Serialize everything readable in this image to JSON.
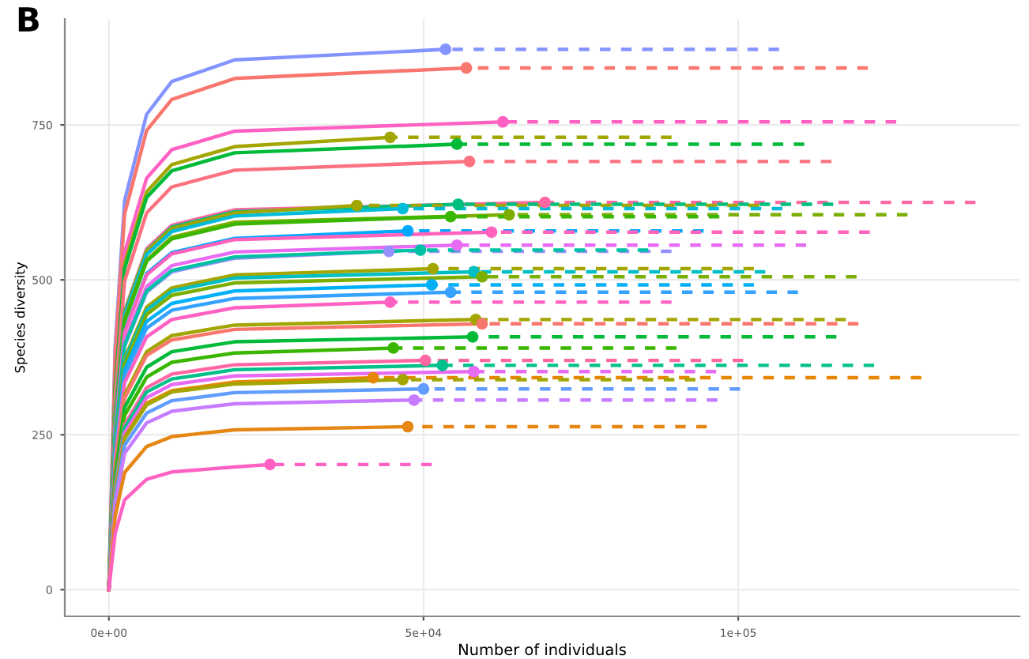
{
  "chart_data": {
    "type": "line",
    "title": "B",
    "xlabel": "Number of individuals",
    "ylabel": "Species diversity",
    "xlim": [
      -7000,
      144700
    ],
    "ylim": [
      -43,
      921
    ],
    "xticks": [
      {
        "value": 0,
        "label": "0e+00"
      },
      {
        "value": 50000,
        "label": "5e+04"
      },
      {
        "value": 100000,
        "label": "1e+05"
      }
    ],
    "yticks": [
      0,
      250,
      500,
      750
    ],
    "grid": true,
    "legend": false,
    "series": [
      {
        "type": "line",
        "line_style": "solid",
        "color": "#8494ff",
        "x": [
          0,
          1000,
          2500,
          6000,
          10000,
          20000,
          53500
        ],
        "values": [
          0,
          392,
          628,
          767,
          820,
          855,
          872
        ]
      },
      {
        "type": "line",
        "line_style": "dashed",
        "color": "#8494ff",
        "x": [
          53500,
          106500
        ],
        "values": [
          872,
          872
        ]
      },
      {
        "type": "line",
        "line_style": "solid",
        "color": "#f8766d",
        "x": [
          0,
          1000,
          2500,
          6000,
          10000,
          20000,
          56800
        ],
        "values": [
          0,
          379,
          606,
          741,
          791,
          825,
          842
        ]
      },
      {
        "type": "line",
        "line_style": "dashed",
        "color": "#f8766d",
        "x": [
          56800,
          120600
        ],
        "values": [
          842,
          842
        ]
      },
      {
        "type": "line",
        "line_style": "solid",
        "color": "#ff61c3",
        "x": [
          0,
          1000,
          2500,
          6000,
          10000,
          20000,
          62600
        ],
        "values": [
          0,
          340,
          544,
          664,
          710,
          740,
          755
        ]
      },
      {
        "type": "line",
        "line_style": "dashed",
        "color": "#ff61c3",
        "x": [
          62600,
          125100
        ],
        "values": [
          755,
          755
        ]
      },
      {
        "type": "line",
        "line_style": "solid",
        "color": "#a3a500",
        "x": [
          0,
          1000,
          2500,
          6000,
          10000,
          20000,
          44700
        ],
        "values": [
          0,
          329,
          526,
          642,
          686,
          715,
          730
        ]
      },
      {
        "type": "line",
        "line_style": "dashed",
        "color": "#a3a500",
        "x": [
          44700,
          89400
        ],
        "values": [
          730,
          730
        ]
      },
      {
        "type": "line",
        "line_style": "solid",
        "color": "#00ba38",
        "x": [
          0,
          1000,
          2500,
          6000,
          10000,
          20000,
          55300
        ],
        "values": [
          0,
          324,
          518,
          633,
          676,
          705,
          719
        ]
      },
      {
        "type": "line",
        "line_style": "dashed",
        "color": "#00ba38",
        "x": [
          55300,
          110500
        ],
        "values": [
          719,
          719
        ]
      },
      {
        "type": "line",
        "line_style": "solid",
        "color": "#fc717f",
        "x": [
          0,
          1000,
          2500,
          6000,
          10000,
          20000,
          57300
        ],
        "values": [
          0,
          311,
          498,
          608,
          650,
          677,
          691
        ]
      },
      {
        "type": "line",
        "line_style": "dashed",
        "color": "#fc717f",
        "x": [
          57300,
          114800
        ],
        "values": [
          691,
          691
        ]
      },
      {
        "type": "line",
        "line_style": "solid",
        "color": "#ff67a4",
        "x": [
          0,
          1000,
          2500,
          6000,
          10000,
          20000,
          69300
        ],
        "values": [
          0,
          281,
          450,
          550,
          588,
          613,
          625
        ]
      },
      {
        "type": "line",
        "line_style": "dashed",
        "color": "#ff67a4",
        "x": [
          69300,
          137700
        ],
        "values": [
          625,
          625
        ]
      },
      {
        "type": "line",
        "line_style": "solid",
        "color": "#00bf7d",
        "x": [
          0,
          1000,
          2500,
          6000,
          10000,
          20000,
          55500
        ],
        "values": [
          0,
          280,
          448,
          547,
          585,
          610,
          622
        ]
      },
      {
        "type": "line",
        "line_style": "dashed",
        "color": "#00bf7d",
        "x": [
          55500,
          115100
        ],
        "values": [
          622,
          622
        ]
      },
      {
        "type": "line",
        "line_style": "solid",
        "color": "#a3a500",
        "x": [
          0,
          1000,
          2500,
          6000,
          10000,
          20000,
          39400
        ],
        "values": [
          0,
          279,
          446,
          546,
          583,
          608,
          620
        ]
      },
      {
        "type": "line",
        "line_style": "dashed",
        "color": "#a3a500",
        "x": [
          39400,
          103300
        ],
        "values": [
          620,
          620
        ]
      },
      {
        "type": "line",
        "line_style": "solid",
        "color": "#00bcd8",
        "x": [
          0,
          1000,
          2500,
          6000,
          10000,
          20000,
          46700
        ],
        "values": [
          0,
          277,
          443,
          541,
          578,
          603,
          615
        ]
      },
      {
        "type": "line",
        "line_style": "dashed",
        "color": "#00bcd8",
        "x": [
          46700,
          107000
        ],
        "values": [
          615,
          615
        ]
      },
      {
        "type": "line",
        "line_style": "solid",
        "color": "#7cae00",
        "x": [
          0,
          1000,
          2500,
          6000,
          10000,
          20000,
          63600
        ],
        "values": [
          0,
          272,
          436,
          532,
          569,
          593,
          605
        ]
      },
      {
        "type": "line",
        "line_style": "dashed",
        "color": "#7cae00",
        "x": [
          63600,
          126900
        ],
        "values": [
          605,
          605
        ]
      },
      {
        "type": "line",
        "line_style": "solid",
        "color": "#39b600",
        "x": [
          0,
          1000,
          2500,
          6000,
          10000,
          20000,
          54300
        ],
        "values": [
          0,
          271,
          433,
          530,
          566,
          590,
          602
        ]
      },
      {
        "type": "line",
        "line_style": "dashed",
        "color": "#39b600",
        "x": [
          54300,
          97000
        ],
        "values": [
          602,
          602
        ]
      },
      {
        "type": "line",
        "line_style": "solid",
        "color": "#00a9ff",
        "x": [
          0,
          1000,
          2500,
          6000,
          10000,
          20000,
          47500
        ],
        "values": [
          0,
          261,
          417,
          510,
          544,
          567,
          579
        ]
      },
      {
        "type": "line",
        "line_style": "dashed",
        "color": "#00a9ff",
        "x": [
          47500,
          94500
        ],
        "values": [
          579,
          579
        ]
      },
      {
        "type": "line",
        "line_style": "solid",
        "color": "#ff62bc",
        "x": [
          0,
          1000,
          2500,
          6000,
          10000,
          20000,
          60800
        ],
        "values": [
          0,
          260,
          415,
          508,
          542,
          565,
          577
        ]
      },
      {
        "type": "line",
        "line_style": "dashed",
        "color": "#ff62bc",
        "x": [
          60800,
          120900
        ],
        "values": [
          577,
          577
        ]
      },
      {
        "type": "line",
        "line_style": "solid",
        "color": "#e76bf3",
        "x": [
          0,
          1000,
          2500,
          6000,
          10000,
          20000,
          55300
        ],
        "values": [
          0,
          250,
          400,
          489,
          523,
          545,
          556
        ]
      },
      {
        "type": "line",
        "line_style": "dashed",
        "color": "#e76bf3",
        "x": [
          55300,
          110800
        ],
        "values": [
          556,
          556
        ]
      },
      {
        "type": "line",
        "line_style": "solid",
        "color": "#9590ff",
        "x": [
          0,
          1000,
          2500,
          6000,
          10000,
          20000,
          44500
        ],
        "values": [
          0,
          246,
          393,
          480,
          513,
          535,
          546
        ]
      },
      {
        "type": "line",
        "line_style": "dashed",
        "color": "#9590ff",
        "x": [
          44500,
          89400
        ],
        "values": [
          546,
          546
        ]
      },
      {
        "type": "line",
        "line_style": "solid",
        "color": "#00c1a3",
        "x": [
          0,
          1000,
          2500,
          6000,
          10000,
          20000,
          49500
        ],
        "values": [
          0,
          247,
          395,
          482,
          515,
          537,
          548
        ]
      },
      {
        "type": "line",
        "line_style": "dashed",
        "color": "#00c1a3",
        "x": [
          49500,
          85700
        ],
        "values": [
          548,
          548
        ]
      },
      {
        "type": "line",
        "line_style": "solid",
        "color": "#a3a500",
        "x": [
          0,
          1000,
          2500,
          6000,
          10000,
          20000,
          51500
        ],
        "values": [
          0,
          233,
          373,
          456,
          487,
          508,
          518
        ]
      },
      {
        "type": "line",
        "line_style": "dashed",
        "color": "#a3a500",
        "x": [
          51500,
          102500
        ],
        "values": [
          518,
          518
        ]
      },
      {
        "type": "line",
        "line_style": "solid",
        "color": "#00bfc4",
        "x": [
          0,
          1000,
          2500,
          6000,
          10000,
          20000,
          58000
        ],
        "values": [
          0,
          231,
          369,
          451,
          482,
          503,
          513
        ]
      },
      {
        "type": "line",
        "line_style": "dashed",
        "color": "#00bfc4",
        "x": [
          58000,
          104300
        ],
        "values": [
          513,
          513
        ]
      },
      {
        "type": "line",
        "line_style": "solid",
        "color": "#7cae00",
        "x": [
          0,
          1000,
          2500,
          6000,
          10000,
          20000,
          59300
        ],
        "values": [
          0,
          227,
          364,
          444,
          475,
          495,
          505
        ]
      },
      {
        "type": "line",
        "line_style": "dashed",
        "color": "#7cae00",
        "x": [
          59300,
          118800
        ],
        "values": [
          505,
          505
        ]
      },
      {
        "type": "line",
        "line_style": "solid",
        "color": "#00b0f6",
        "x": [
          0,
          1000,
          2500,
          6000,
          10000,
          20000,
          51300
        ],
        "values": [
          0,
          221,
          354,
          433,
          462,
          482,
          492
        ]
      },
      {
        "type": "line",
        "line_style": "dashed",
        "color": "#00b0f6",
        "x": [
          51300,
          102500
        ],
        "values": [
          492,
          492
        ]
      },
      {
        "type": "line",
        "line_style": "solid",
        "color": "#35a2ff",
        "x": [
          0,
          1000,
          2500,
          6000,
          10000,
          20000,
          54300
        ],
        "values": [
          0,
          216,
          346,
          422,
          451,
          470,
          480
        ]
      },
      {
        "type": "line",
        "line_style": "dashed",
        "color": "#35a2ff",
        "x": [
          54300,
          109500
        ],
        "values": [
          480,
          480
        ]
      },
      {
        "type": "line",
        "line_style": "solid",
        "color": "#ff61c3",
        "x": [
          0,
          1000,
          2500,
          6000,
          10000,
          20000,
          44700
        ],
        "values": [
          0,
          209,
          334,
          408,
          436,
          455,
          464
        ]
      },
      {
        "type": "line",
        "line_style": "dashed",
        "color": "#ff61c3",
        "x": [
          44700,
          89400
        ],
        "values": [
          464,
          464
        ]
      },
      {
        "type": "line",
        "line_style": "solid",
        "color": "#a3a500",
        "x": [
          0,
          1000,
          2500,
          6000,
          10000,
          20000,
          58300
        ],
        "values": [
          0,
          196,
          314,
          384,
          410,
          427,
          436
        ]
      },
      {
        "type": "line",
        "line_style": "dashed",
        "color": "#a3a500",
        "x": [
          58300,
          117100
        ],
        "values": [
          436,
          436
        ]
      },
      {
        "type": "line",
        "line_style": "solid",
        "color": "#f8766d",
        "x": [
          0,
          1000,
          2500,
          6000,
          10000,
          20000,
          59300
        ],
        "values": [
          0,
          193,
          309,
          378,
          403,
          420,
          429
        ]
      },
      {
        "type": "line",
        "line_style": "dashed",
        "color": "#f8766d",
        "x": [
          59300,
          119100
        ],
        "values": [
          429,
          429
        ]
      },
      {
        "type": "line",
        "line_style": "solid",
        "color": "#00ba38",
        "x": [
          0,
          1000,
          2500,
          6000,
          10000,
          20000,
          57800
        ],
        "values": [
          0,
          184,
          294,
          359,
          384,
          400,
          408
        ]
      },
      {
        "type": "line",
        "line_style": "dashed",
        "color": "#00ba38",
        "x": [
          57800,
          115600
        ],
        "values": [
          408,
          408
        ]
      },
      {
        "type": "line",
        "line_style": "solid",
        "color": "#39b600",
        "x": [
          0,
          1000,
          2500,
          6000,
          10000,
          20000,
          45200
        ],
        "values": [
          0,
          176,
          281,
          343,
          367,
          382,
          390
        ]
      },
      {
        "type": "line",
        "line_style": "dashed",
        "color": "#39b600",
        "x": [
          45200,
          90200
        ],
        "values": [
          390,
          390
        ]
      },
      {
        "type": "line",
        "line_style": "solid",
        "color": "#ff67a4",
        "x": [
          0,
          1000,
          2500,
          6000,
          10000,
          20000,
          50300
        ],
        "values": [
          0,
          167,
          266,
          326,
          348,
          363,
          370
        ]
      },
      {
        "type": "line",
        "line_style": "dashed",
        "color": "#ff67a4",
        "x": [
          50300,
          100800
        ],
        "values": [
          370,
          370
        ]
      },
      {
        "type": "line",
        "line_style": "solid",
        "color": "#00c08b",
        "x": [
          0,
          1000,
          2500,
          6000,
          10000,
          20000,
          53000
        ],
        "values": [
          0,
          163,
          261,
          319,
          340,
          355,
          362
        ]
      },
      {
        "type": "line",
        "line_style": "dashed",
        "color": "#00c08b",
        "x": [
          53000,
          121600
        ],
        "values": [
          362,
          362
        ]
      },
      {
        "type": "line",
        "line_style": "solid",
        "color": "#e76bf3",
        "x": [
          0,
          1000,
          2500,
          6000,
          10000,
          20000,
          58000
        ],
        "values": [
          0,
          158,
          253,
          310,
          331,
          345,
          352
        ]
      },
      {
        "type": "line",
        "line_style": "dashed",
        "color": "#e76bf3",
        "x": [
          58000,
          96500
        ],
        "values": [
          352,
          352
        ]
      },
      {
        "type": "line",
        "line_style": "solid",
        "color": "#e58700",
        "x": [
          0,
          1000,
          2500,
          6000,
          10000,
          20000,
          42000
        ],
        "values": [
          0,
          154,
          246,
          301,
          321,
          335,
          342
        ]
      },
      {
        "type": "line",
        "line_style": "dashed",
        "color": "#e58700",
        "x": [
          42000,
          129100
        ],
        "values": [
          342,
          342
        ]
      },
      {
        "type": "line",
        "line_style": "solid",
        "color": "#a3a500",
        "x": [
          0,
          1000,
          2500,
          6000,
          10000,
          20000,
          46700
        ],
        "values": [
          0,
          153,
          244,
          298,
          319,
          332,
          339
        ]
      },
      {
        "type": "line",
        "line_style": "dashed",
        "color": "#a3a500",
        "x": [
          46700,
          93200
        ],
        "values": [
          339,
          339
        ]
      },
      {
        "type": "line",
        "line_style": "solid",
        "color": "#619cff",
        "x": [
          0,
          1000,
          2500,
          6000,
          10000,
          20000,
          50000
        ],
        "values": [
          0,
          146,
          233,
          285,
          305,
          318,
          324
        ]
      },
      {
        "type": "line",
        "line_style": "dashed",
        "color": "#619cff",
        "x": [
          50000,
          100300
        ],
        "values": [
          324,
          324
        ]
      },
      {
        "type": "line",
        "line_style": "solid",
        "color": "#c77cff",
        "x": [
          0,
          1000,
          2500,
          6000,
          10000,
          20000,
          48500
        ],
        "values": [
          0,
          138,
          220,
          269,
          288,
          300,
          306
        ]
      },
      {
        "type": "line",
        "line_style": "dashed",
        "color": "#c77cff",
        "x": [
          48500,
          96700
        ],
        "values": [
          306,
          306
        ]
      },
      {
        "type": "line",
        "line_style": "solid",
        "color": "#e68613",
        "x": [
          0,
          1000,
          2500,
          6000,
          10000,
          20000,
          47500
        ],
        "values": [
          0,
          118,
          189,
          231,
          247,
          258,
          263
        ]
      },
      {
        "type": "line",
        "line_style": "dashed",
        "color": "#e68613",
        "x": [
          47500,
          95000
        ],
        "values": [
          263,
          263
        ]
      },
      {
        "type": "line",
        "line_style": "solid",
        "color": "#ff61c3",
        "x": [
          0,
          1000,
          2500,
          6000,
          10000,
          20000,
          25600
        ],
        "values": [
          0,
          91,
          145,
          178,
          190,
          198,
          202
        ]
      },
      {
        "type": "line",
        "line_style": "dashed",
        "color": "#ff61c3",
        "x": [
          25600,
          51300
        ],
        "values": [
          202,
          202
        ]
      },
      {
        "type": "scatter",
        "marker": "circle",
        "x": [
          53500,
          56800,
          62600,
          44700,
          55300,
          57300,
          69300,
          55500,
          39400,
          46700,
          63600,
          54300,
          47500,
          60800,
          55300,
          44500,
          49500,
          51500,
          58000,
          59300,
          51300,
          54300,
          44700,
          58300,
          59300,
          57800,
          45200,
          50300,
          53000,
          58000,
          42000,
          46700,
          50000,
          48500,
          47500,
          25600
        ],
        "values": [
          872,
          842,
          755,
          730,
          719,
          691,
          625,
          622,
          620,
          615,
          605,
          602,
          579,
          577,
          556,
          546,
          548,
          518,
          513,
          505,
          492,
          480,
          464,
          436,
          429,
          408,
          390,
          370,
          362,
          352,
          342,
          339,
          324,
          306,
          263,
          202
        ],
        "colors": [
          "#8494ff",
          "#f8766d",
          "#ff61c3",
          "#a3a500",
          "#00ba38",
          "#fc717f",
          "#ff67a4",
          "#00bf7d",
          "#a3a500",
          "#00bcd8",
          "#7cae00",
          "#39b600",
          "#00a9ff",
          "#ff62bc",
          "#e76bf3",
          "#9590ff",
          "#00c1a3",
          "#a3a500",
          "#00bfc4",
          "#7cae00",
          "#00b0f6",
          "#35a2ff",
          "#ff61c3",
          "#a3a500",
          "#f8766d",
          "#00ba38",
          "#39b600",
          "#ff67a4",
          "#00c08b",
          "#e76bf3",
          "#e58700",
          "#a3a500",
          "#619cff",
          "#c77cff",
          "#e68613",
          "#ff61c3"
        ]
      }
    ]
  }
}
